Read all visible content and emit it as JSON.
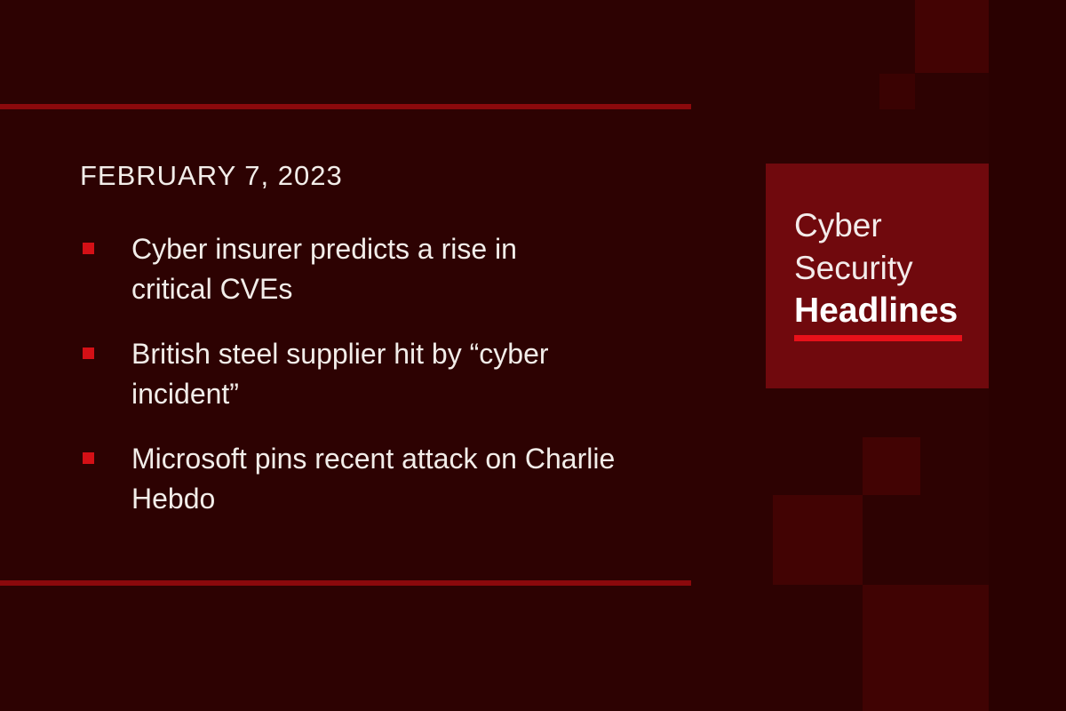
{
  "slide": {
    "date": "FEBRUARY 7, 2023",
    "headlines": [
      {
        "text": "Cyber insurer predicts a rise in\ncritical CVEs"
      },
      {
        "text": "British steel supplier hit by “cyber\nincident”"
      },
      {
        "text": "Microsoft pins recent attack on Charlie\nHebdo"
      }
    ],
    "logo": {
      "word1": "Cyber",
      "word2": "Security",
      "word3": "Headlines"
    },
    "icons": {
      "bullet": "red-square-bullet"
    },
    "colors": {
      "background": "#2d0202",
      "panel": "#70090d",
      "accent_red": "#e8111a",
      "bullet_red": "#d41016",
      "rule_red": "#8b090c",
      "text": "#f2ede9"
    }
  }
}
